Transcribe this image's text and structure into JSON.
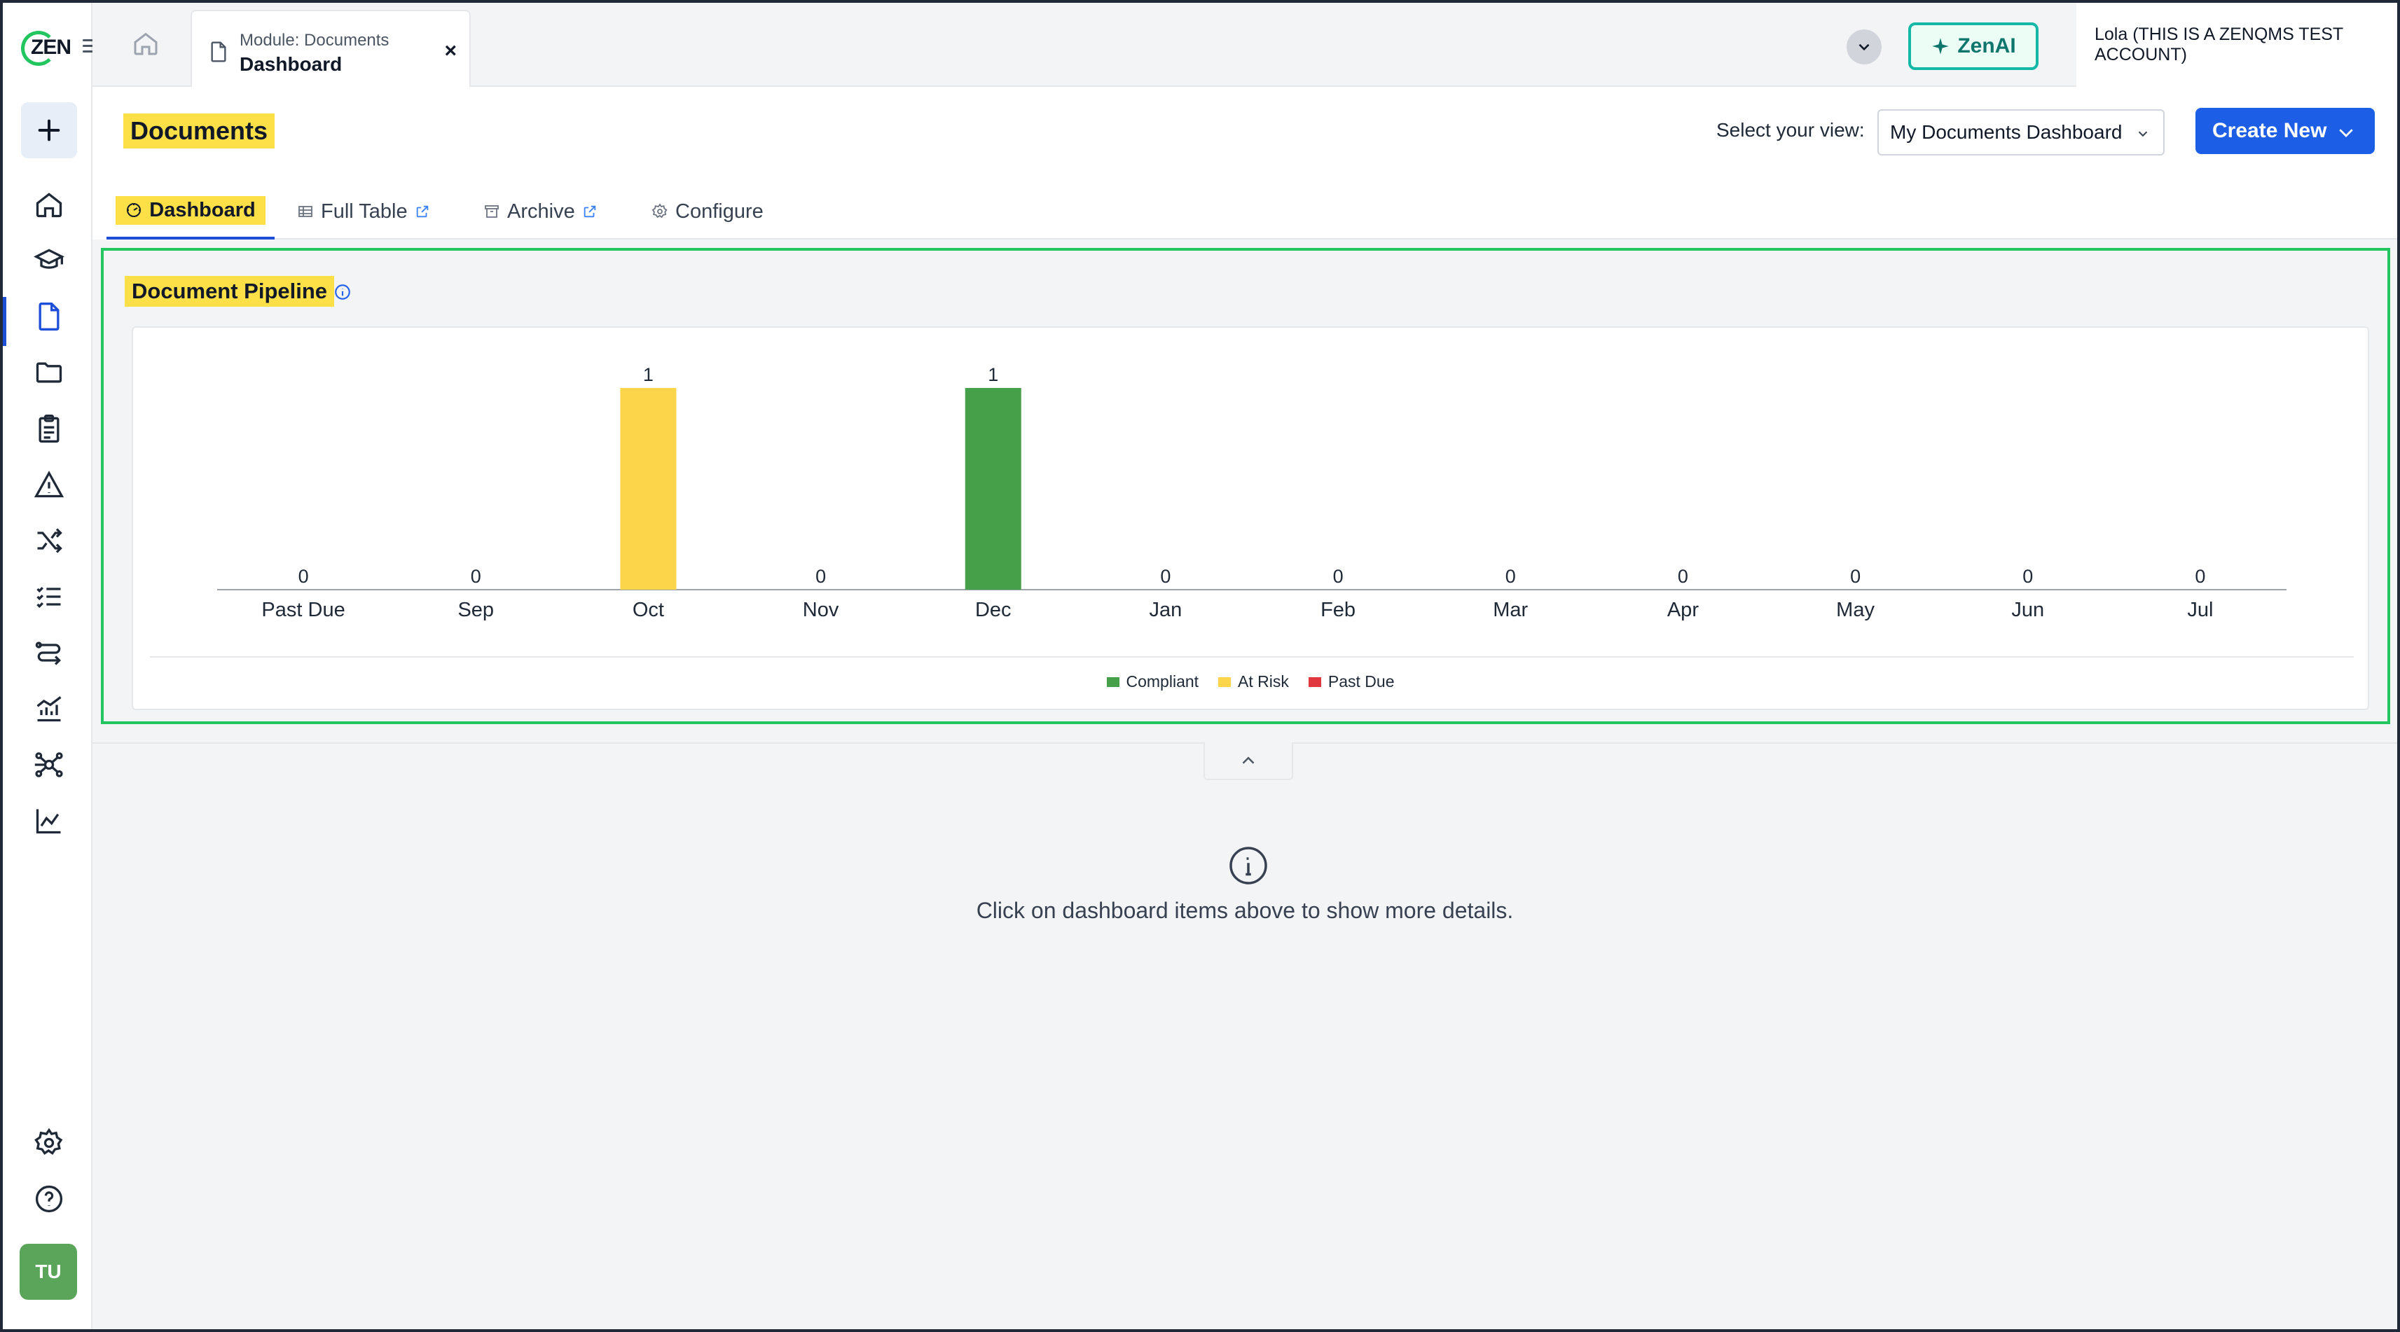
{
  "app": {
    "logo_text": "ZEN",
    "user_name": "Lola (THIS IS A ZENQMS TEST ACCOUNT)",
    "avatar_initials": "TU",
    "zenai_label": "ZenAI"
  },
  "tab": {
    "subtitle": "Module: Documents",
    "title": "Dashboard",
    "close": "×"
  },
  "sidebar": {
    "items": [
      {
        "icon": "home-icon"
      },
      {
        "icon": "graduation-cap-icon"
      },
      {
        "icon": "document-icon"
      },
      {
        "icon": "folder-icon"
      },
      {
        "icon": "clipboard-icon"
      },
      {
        "icon": "warning-icon"
      },
      {
        "icon": "shuffle-icon"
      },
      {
        "icon": "checklist-icon"
      },
      {
        "icon": "workflow-icon"
      },
      {
        "icon": "analytics-icon"
      },
      {
        "icon": "network-icon"
      },
      {
        "icon": "line-chart-icon"
      }
    ],
    "bottom": [
      {
        "icon": "settings-icon"
      },
      {
        "icon": "help-icon"
      }
    ]
  },
  "header": {
    "title": "Documents",
    "view_label": "Select your view:",
    "view_value": "My Documents Dashboard",
    "create_label": "Create New"
  },
  "tabs": [
    {
      "label": "Dashboard"
    },
    {
      "label": "Full Table"
    },
    {
      "label": "Archive"
    },
    {
      "label": "Configure"
    }
  ],
  "pipeline": {
    "title": "Document Pipeline"
  },
  "chart_data": {
    "type": "bar",
    "stacked": true,
    "categories": [
      "Past Due",
      "Sep",
      "Oct",
      "Nov",
      "Dec",
      "Jan",
      "Feb",
      "Mar",
      "Apr",
      "May",
      "Jun",
      "Jul"
    ],
    "series": [
      {
        "name": "Compliant",
        "color": "#46a049",
        "values": [
          0,
          0,
          0,
          0,
          1,
          0,
          0,
          0,
          0,
          0,
          0,
          0
        ]
      },
      {
        "name": "At Risk",
        "color": "#fdd54a",
        "values": [
          0,
          0,
          1,
          0,
          0,
          0,
          0,
          0,
          0,
          0,
          0,
          0
        ]
      },
      {
        "name": "Past Due",
        "color": "#e0383e",
        "values": [
          0,
          0,
          0,
          0,
          0,
          0,
          0,
          0,
          0,
          0,
          0,
          0
        ]
      }
    ],
    "totals": [
      0,
      0,
      1,
      0,
      1,
      0,
      0,
      0,
      0,
      0,
      0,
      0
    ],
    "ylim": [
      0,
      1
    ],
    "grid": false,
    "legend": "bottom-center"
  },
  "empty_state": {
    "message": "Click on dashboard items above to show more details."
  }
}
